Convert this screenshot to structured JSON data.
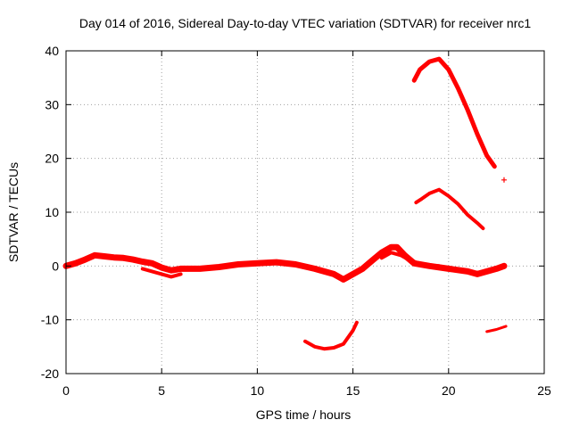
{
  "chart_data": {
    "type": "scatter",
    "title": "Day 014 of 2016, Sidereal Day-to-day VTEC variation (SDTVAR) for receiver nrc1",
    "xlabel": "GPS time / hours",
    "ylabel": "SDTVAR / TECUs",
    "xlim": [
      0,
      25
    ],
    "ylim": [
      -20,
      40
    ],
    "xticks": [
      "0",
      "5",
      "10",
      "15",
      "20",
      "25"
    ],
    "yticks": [
      "-20",
      "-10",
      "0",
      "10",
      "20",
      "30",
      "40"
    ],
    "grid": true,
    "marker": "+",
    "color": "#ff0000",
    "series": [
      {
        "name": "main-band",
        "width": 7,
        "x": [
          0,
          0.5,
          1.0,
          1.5,
          2.0,
          2.5,
          3.0,
          3.5,
          4.0,
          4.5,
          5.0,
          5.5,
          6.0,
          7.0,
          8.0,
          9.0,
          10.0,
          11.0,
          12.0,
          13.0,
          13.5,
          14.0,
          14.5,
          15.0,
          15.5,
          16.0,
          16.5,
          17.0,
          17.3,
          17.7,
          18.2,
          19.0,
          20.0,
          21.0,
          21.5,
          22.0,
          22.5,
          22.9
        ],
        "y": [
          0,
          0.5,
          1.2,
          2.0,
          1.8,
          1.6,
          1.5,
          1.2,
          0.8,
          0.5,
          -0.3,
          -0.8,
          -0.5,
          -0.5,
          -0.2,
          0.3,
          0.5,
          0.7,
          0.3,
          -0.5,
          -1.0,
          -1.5,
          -2.5,
          -1.5,
          -0.5,
          1.0,
          2.5,
          3.5,
          3.5,
          2.0,
          0.5,
          0,
          -0.5,
          -1.0,
          -1.5,
          -1.0,
          -0.5,
          0
        ]
      },
      {
        "name": "secondary-band",
        "width": 4,
        "x": [
          4.0,
          4.5,
          5.0,
          5.5,
          6.0
        ],
        "y": [
          -0.5,
          -1.0,
          -1.5,
          -2.0,
          -1.5
        ]
      },
      {
        "name": "overlap-band",
        "width": 4,
        "x": [
          16.5,
          17.0,
          17.5,
          18.0,
          18.5,
          19.0,
          19.5,
          20.0
        ],
        "y": [
          1.5,
          2.5,
          2.0,
          1.0,
          0.5,
          0,
          0,
          -0.5
        ]
      },
      {
        "name": "upper-arc",
        "width": 5,
        "x": [
          18.2,
          18.5,
          19.0,
          19.5,
          20.0,
          20.5,
          21.0,
          21.5,
          22.0,
          22.4
        ],
        "y": [
          34.5,
          36.5,
          38.0,
          38.5,
          36.5,
          33.0,
          29.0,
          24.5,
          20.5,
          18.5
        ]
      },
      {
        "name": "middle-arc",
        "width": 4,
        "x": [
          18.3,
          18.6,
          19.0,
          19.5,
          20.0,
          20.5,
          21.0,
          21.5,
          21.8
        ],
        "y": [
          11.8,
          12.5,
          13.5,
          14.2,
          13.0,
          11.5,
          9.5,
          8.0,
          7.0
        ]
      },
      {
        "name": "lower-arc",
        "width": 4,
        "x": [
          12.5,
          13.0,
          13.5,
          14.0,
          14.5,
          15.0,
          15.2
        ],
        "y": [
          -14.0,
          -15.0,
          -15.4,
          -15.2,
          -14.5,
          -12.0,
          -10.5
        ]
      },
      {
        "name": "late-negative",
        "width": 3,
        "x": [
          22.0,
          22.5,
          23.0
        ],
        "y": [
          -12.2,
          -11.8,
          -11.2
        ]
      }
    ],
    "isolated_points": [
      {
        "x": 22.9,
        "y": 16.0
      }
    ]
  }
}
